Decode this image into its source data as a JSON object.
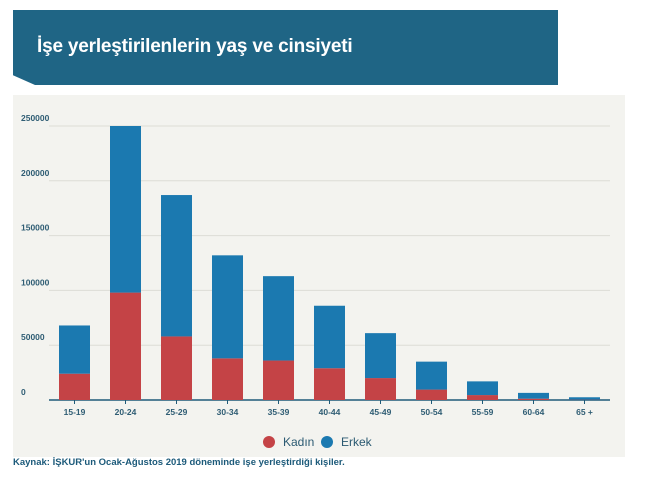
{
  "header": {
    "title": "İşe yerleştirilenlerin yaş ve cinsiyeti"
  },
  "colors": {
    "header_bg": "#1f6585",
    "female": "#c44346",
    "male": "#1b79b0",
    "panel_bg": "#f3f3ef"
  },
  "chart_data": {
    "type": "bar",
    "stacked": true,
    "title": "İşe yerleştirilenlerin yaş ve cinsiyeti",
    "xlabel": "",
    "ylabel": "",
    "categories": [
      "15-19",
      "20-24",
      "25-29",
      "30-34",
      "35-39",
      "40-44",
      "45-49",
      "50-54",
      "55-59",
      "60-64",
      "65 +"
    ],
    "series": [
      {
        "name": "Kadın",
        "values": [
          24000,
          98000,
          58000,
          38000,
          36000,
          29000,
          20000,
          9500,
          4500,
          1200,
          300
        ]
      },
      {
        "name": "Erkek",
        "values": [
          44000,
          152000,
          129000,
          94000,
          77000,
          57000,
          41000,
          25500,
          12500,
          5300,
          2200
        ]
      }
    ],
    "ylim": [
      0,
      250000
    ],
    "yticks": [
      0,
      50000,
      100000,
      150000,
      200000,
      250000
    ],
    "ytick_labels": [
      "0",
      "50000",
      "100000",
      "150000",
      "200000",
      "250000"
    ],
    "grid": true,
    "legend": "bottom-center"
  },
  "legend": {
    "female_label": "Kadın",
    "male_label": "Erkek"
  },
  "source": {
    "text": "Kaynak: İŞKUR'un Ocak-Ağustos 2019 döneminde işe yerleştirdiği kişiler."
  }
}
